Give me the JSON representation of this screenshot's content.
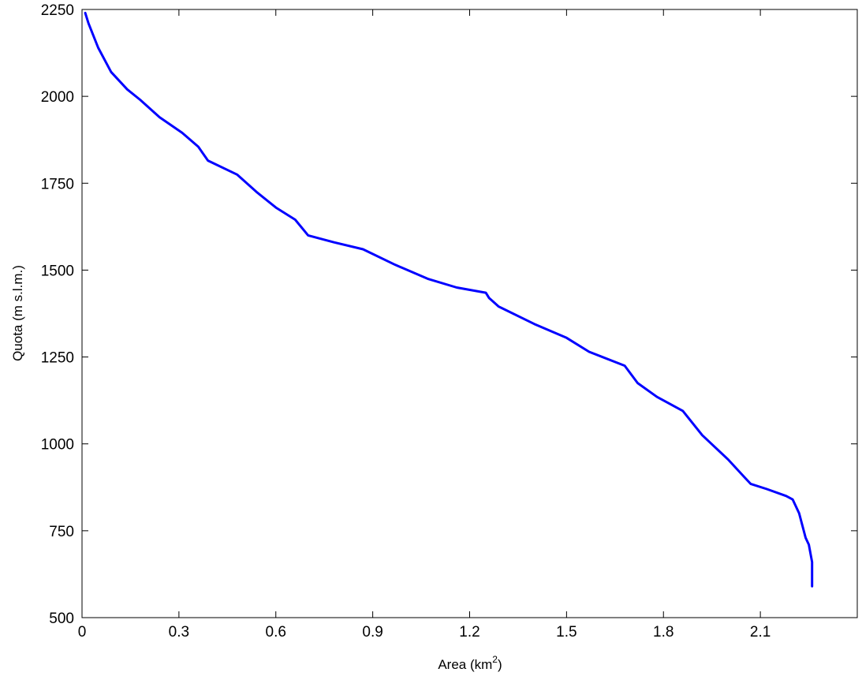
{
  "chart_data": {
    "type": "line",
    "title": "",
    "xlabel": "Area (km",
    "xlabel_sup": "2",
    "xlabel_suffix": ")",
    "ylabel": "Quota (m s.l.m.)",
    "xlim": [
      0,
      2.4
    ],
    "ylim": [
      500,
      2250
    ],
    "xticks": [
      0,
      0.3,
      0.6,
      0.9,
      1.2,
      1.5,
      1.8,
      2.1
    ],
    "xtick_labels": [
      "0",
      "0.3",
      "0.6",
      "0.9",
      "1.2",
      "1.5",
      "1.8",
      "2.1"
    ],
    "yticks": [
      500,
      750,
      1000,
      1250,
      1500,
      1750,
      2000,
      2250
    ],
    "ytick_labels": [
      "500",
      "750",
      "1000",
      "1250",
      "1500",
      "1750",
      "2000",
      "2250"
    ],
    "grid": false,
    "legend": "none",
    "series": [
      {
        "color": "#0000ff",
        "x": [
          0.01,
          0.02,
          0.05,
          0.09,
          0.14,
          0.18,
          0.24,
          0.31,
          0.36,
          0.39,
          0.48,
          0.54,
          0.6,
          0.66,
          0.7,
          0.78,
          0.87,
          0.97,
          1.07,
          1.16,
          1.25,
          1.26,
          1.29,
          1.4,
          1.5,
          1.57,
          1.68,
          1.72,
          1.78,
          1.86,
          1.92,
          2.0,
          2.05,
          2.07,
          2.12,
          2.18,
          2.2,
          2.22,
          2.23,
          2.24,
          2.25,
          2.26,
          2.26
        ],
        "y": [
          2240,
          2210,
          2140,
          2070,
          2020,
          1990,
          1940,
          1895,
          1855,
          1815,
          1775,
          1725,
          1680,
          1645,
          1600,
          1580,
          1560,
          1515,
          1475,
          1450,
          1435,
          1420,
          1395,
          1345,
          1305,
          1265,
          1225,
          1175,
          1135,
          1095,
          1025,
          955,
          905,
          885,
          870,
          850,
          840,
          800,
          765,
          730,
          710,
          660,
          590
        ]
      }
    ]
  }
}
